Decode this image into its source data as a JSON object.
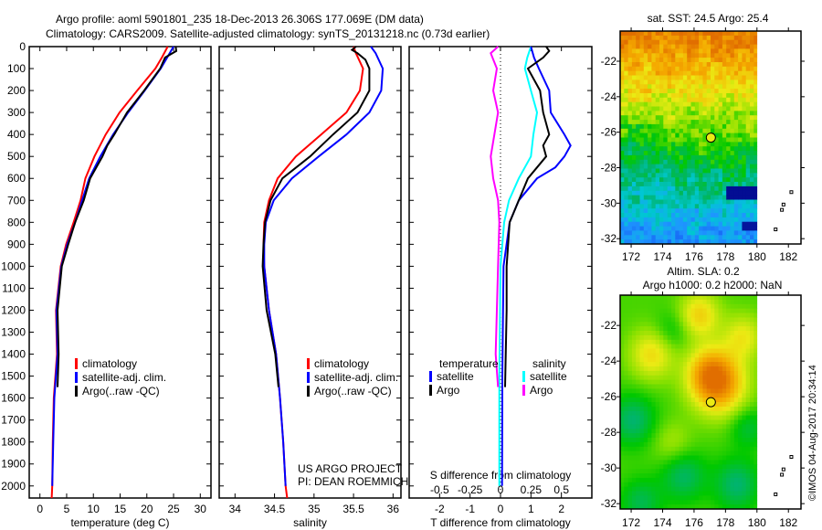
{
  "header": {
    "title_line1": "Argo profile: aoml 5901801_235 18-Dec-2013 26.306S 177.069E (DM data)",
    "title_line2": "Climatology: CARS2009. Satellite-adjusted climatology: synTS_20131218.nc (0.73d earlier)"
  },
  "credits": {
    "project": "US ARGO PROJECT",
    "pi": "PI: DEAN ROEMMICH",
    "stamp": "©IMOS 04-Aug-2017 20:34:14"
  },
  "colors": {
    "climatology": "#ff0000",
    "satellite": "#0000ff",
    "argo": "#000000",
    "sal_satellite": "#00ffff",
    "sal_argo": "#ff00ff"
  },
  "chart_data": [
    {
      "id": "temperature",
      "type": "line",
      "xlabel": "temperature (deg C)",
      "ylabel": "",
      "xlim": [
        -2,
        32
      ],
      "ylim": [
        2055,
        0
      ],
      "xticks": [
        0,
        5,
        10,
        15,
        20,
        25,
        30
      ],
      "yticks": [
        0,
        100,
        200,
        300,
        400,
        500,
        600,
        700,
        800,
        900,
        1000,
        1100,
        1200,
        1300,
        1400,
        1500,
        1600,
        1700,
        1800,
        1900,
        2000
      ],
      "legend": [
        "climatology",
        "satellite-adj. clim.",
        "Argo(..raw -QC)"
      ],
      "legend_position": "center-left",
      "series": [
        {
          "name": "climatology",
          "depth": [
            0,
            50,
            100,
            200,
            300,
            400,
            500,
            600,
            700,
            800,
            900,
            1000,
            1200,
            1400,
            1600,
            1800,
            2000,
            2055
          ],
          "values": [
            23.9,
            22.8,
            21.6,
            18.2,
            14.9,
            12.3,
            10.2,
            8.5,
            7.6,
            6.3,
            4.9,
            3.9,
            3.0,
            3.2,
            2.6,
            2.4,
            2.3,
            2.2
          ]
        },
        {
          "name": "satellite-adj. clim.",
          "depth": [
            0,
            50,
            100,
            200,
            300,
            400,
            500,
            600,
            700,
            800,
            900,
            1000,
            1200,
            1400,
            1600,
            1800,
            2000
          ],
          "values": [
            25.0,
            23.8,
            22.6,
            19.6,
            16.5,
            13.7,
            11.3,
            9.2,
            7.9,
            6.6,
            5.1,
            4.0,
            3.1,
            3.3,
            2.7,
            2.5,
            2.3
          ]
        },
        {
          "name": "Argo(..raw -QC)",
          "depth": [
            0,
            20,
            50,
            100,
            200,
            300,
            400,
            450,
            500,
            600,
            700,
            800,
            900,
            1000,
            1200,
            1400,
            1550
          ],
          "values": [
            25.4,
            25.5,
            23.4,
            22.5,
            19.5,
            16.3,
            13.9,
            12.6,
            11.7,
            9.4,
            8.2,
            6.6,
            5.3,
            4.1,
            3.3,
            3.5,
            3.3
          ]
        }
      ]
    },
    {
      "id": "salinity",
      "type": "line",
      "xlabel": "salinity",
      "xlim": [
        33.8,
        36.1
      ],
      "ylim": [
        2055,
        0
      ],
      "xticks": [
        34,
        34.5,
        35,
        35.5,
        36
      ],
      "legend": [
        "climatology",
        "satellite-adj. clim.",
        "Argo(..raw -QC)"
      ],
      "legend_position": "center-right",
      "series": [
        {
          "name": "climatology",
          "depth": [
            0,
            30,
            100,
            200,
            300,
            400,
            500,
            600,
            700,
            800,
            900,
            1000,
            1200,
            1400,
            1600,
            1800,
            2000,
            2055
          ],
          "values": [
            35.5,
            35.53,
            35.62,
            35.58,
            35.41,
            35.09,
            34.77,
            34.54,
            34.43,
            34.37,
            34.36,
            34.37,
            34.43,
            34.52,
            34.57,
            34.61,
            34.64,
            34.66
          ]
        },
        {
          "name": "satellite-adj. clim.",
          "depth": [
            0,
            30,
            100,
            200,
            300,
            400,
            500,
            600,
            700,
            800,
            900,
            1000,
            1200,
            1400,
            1600,
            1800,
            2000
          ],
          "values": [
            35.72,
            35.78,
            35.87,
            35.85,
            35.7,
            35.41,
            35.06,
            34.72,
            34.49,
            34.39,
            34.37,
            34.37,
            34.43,
            34.52,
            34.57,
            34.61,
            34.64
          ]
        },
        {
          "name": "Argo(..raw -QC)",
          "depth": [
            0,
            15,
            30,
            60,
            100,
            200,
            300,
            400,
            500,
            600,
            700,
            800,
            900,
            1000,
            1200,
            1400,
            1550
          ],
          "values": [
            35.53,
            35.48,
            35.55,
            35.65,
            35.7,
            35.7,
            35.55,
            35.24,
            34.95,
            34.6,
            34.45,
            34.38,
            34.36,
            34.35,
            34.4,
            34.51,
            34.55
          ]
        }
      ]
    },
    {
      "id": "difference",
      "type": "line",
      "xlabel": "T difference from climatology",
      "xlabel_secondary": "S difference from climatology",
      "xlim": [
        -3,
        3
      ],
      "xlim_secondary": [
        -0.75,
        0.75
      ],
      "xticks": [
        -2,
        -1,
        0,
        1,
        2
      ],
      "xticks_secondary": [
        -0.5,
        -0.25,
        0,
        0.25,
        0.5
      ],
      "xtick_labels_secondary": [
        "-0.5",
        "-0.25",
        "0",
        "0.25",
        "0.5"
      ],
      "ylim": [
        2055,
        0
      ],
      "legend_temperature_title": "temperature",
      "legend_salinity_title": "salinity",
      "legend_items": [
        "satellite",
        "Argo"
      ],
      "series": [
        {
          "name": "T satellite",
          "axis": "T",
          "depth": [
            0,
            50,
            100,
            200,
            300,
            400,
            450,
            500,
            550,
            600,
            700,
            800,
            1000,
            1500,
            2000
          ],
          "values": [
            1.0,
            1.1,
            1.26,
            1.6,
            1.65,
            2.1,
            2.3,
            2.1,
            1.8,
            1.2,
            0.6,
            0.3,
            0.1,
            0.06,
            0.05
          ]
        },
        {
          "name": "T Argo",
          "axis": "T",
          "depth": [
            0,
            20,
            50,
            100,
            200,
            300,
            400,
            450,
            500,
            600,
            700,
            800,
            1000,
            1200,
            1550
          ],
          "values": [
            1.5,
            1.6,
            1.4,
            0.9,
            1.3,
            1.4,
            1.6,
            1.4,
            1.5,
            0.9,
            0.6,
            0.3,
            0.2,
            0.2,
            0.15
          ]
        },
        {
          "name": "S satellite",
          "axis": "S",
          "depth": [
            0,
            50,
            100,
            200,
            300,
            400,
            500,
            600,
            700,
            800,
            1000,
            1500,
            2000
          ],
          "values": [
            0.25,
            0.22,
            0.2,
            0.25,
            0.3,
            0.27,
            0.25,
            0.15,
            0.07,
            0.03,
            0.0,
            -0.01,
            -0.01
          ]
        },
        {
          "name": "S Argo",
          "axis": "S",
          "depth": [
            0,
            15,
            30,
            100,
            200,
            300,
            400,
            500,
            600,
            700,
            800,
            1000,
            1200,
            1400,
            1550
          ],
          "values": [
            -0.02,
            -0.05,
            -0.08,
            -0.03,
            -0.06,
            -0.02,
            -0.05,
            -0.08,
            -0.06,
            -0.02,
            -0.01,
            -0.02,
            -0.03,
            -0.04,
            -0.02
          ]
        }
      ]
    },
    {
      "id": "sst-map",
      "type": "heatmap",
      "title": "sat. SST: 24.5 Argo: 25.4",
      "xlim": [
        171.3,
        182.8
      ],
      "ylim": [
        -32.3,
        -20.3
      ],
      "xticks": [
        172,
        174,
        176,
        178,
        180,
        182
      ],
      "yticks": [
        -22,
        -24,
        -26,
        -28,
        -30,
        -32
      ],
      "float_position": [
        177.069,
        -26.306
      ]
    },
    {
      "id": "sla-map",
      "type": "heatmap",
      "title_line1": "Altim. SLA: 0.2",
      "title_line2": "Argo h1000: 0.2 h2000: NaN",
      "xlim": [
        171.3,
        182.8
      ],
      "ylim": [
        -32.3,
        -20.3
      ],
      "xticks": [
        172,
        174,
        176,
        178,
        180,
        182
      ],
      "yticks": [
        -22,
        -24,
        -26,
        -28,
        -30,
        -32
      ],
      "float_position": [
        177.069,
        -26.306
      ]
    }
  ]
}
